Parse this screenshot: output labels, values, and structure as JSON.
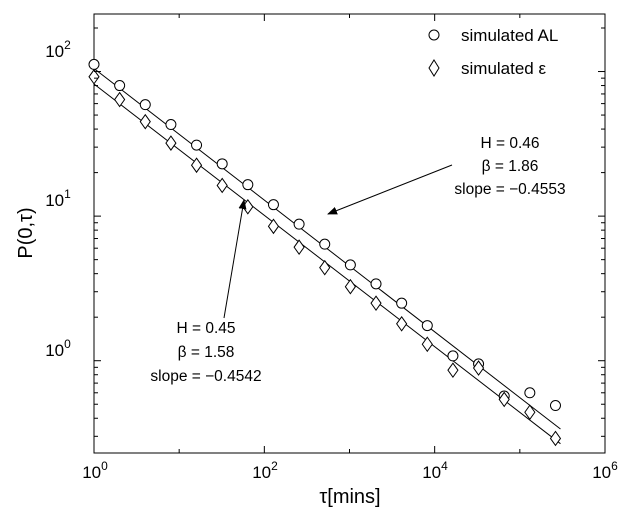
{
  "chart_data": {
    "type": "scatter",
    "title": "",
    "xlabel": "τ[mins]",
    "ylabel": "P(0,τ)",
    "xscale": "log",
    "yscale": "log",
    "xlim": [
      1,
      1000000
    ],
    "ylim": [
      0.23,
      250
    ],
    "grid": false,
    "legend_position": "top-right",
    "x_ticks": [
      {
        "base": "10",
        "exp": "0"
      },
      {
        "base": "10",
        "exp": "2"
      },
      {
        "base": "10",
        "exp": "4"
      },
      {
        "base": "10",
        "exp": "6"
      }
    ],
    "y_ticks": [
      {
        "base": "10",
        "exp": "0"
      },
      {
        "base": "10",
        "exp": "1"
      },
      {
        "base": "10",
        "exp": "2"
      }
    ],
    "series": [
      {
        "name": "simulated AL",
        "marker": "circle",
        "x": [
          1,
          2,
          4,
          8,
          16,
          32,
          64,
          128,
          256,
          512,
          1024,
          2048,
          4096,
          8192,
          16384,
          32768,
          65536,
          131072,
          262144
        ],
        "y": [
          112,
          80,
          59,
          43,
          31,
          23,
          16.5,
          12,
          8.8,
          6.4,
          4.6,
          3.4,
          2.5,
          1.75,
          1.08,
          0.95,
          0.57,
          0.6,
          0.49
        ]
      },
      {
        "name": "simulated ε",
        "marker": "diamond",
        "x": [
          1,
          2,
          4,
          8,
          16,
          32,
          64,
          128,
          256,
          512,
          1024,
          2048,
          4096,
          8192,
          16384,
          32768,
          65536,
          131072,
          262144
        ],
        "y": [
          92,
          64,
          45,
          32,
          22.5,
          16.3,
          11.6,
          8.5,
          6.1,
          4.4,
          3.25,
          2.5,
          1.8,
          1.3,
          0.86,
          0.89,
          0.54,
          0.44,
          0.29
        ]
      }
    ],
    "fit_lines": [
      {
        "series": "simulated AL",
        "intercept": 105,
        "slope": -0.4553
      },
      {
        "series": "simulated ε",
        "intercept": 82,
        "slope": -0.4542
      }
    ],
    "annotations": [
      {
        "lines": [
          "H = 0.46",
          "β = 1.86",
          "slope = −0.4553"
        ]
      },
      {
        "lines": [
          "H = 0.45",
          "β = 1.58",
          "slope = −0.4542"
        ]
      }
    ]
  }
}
